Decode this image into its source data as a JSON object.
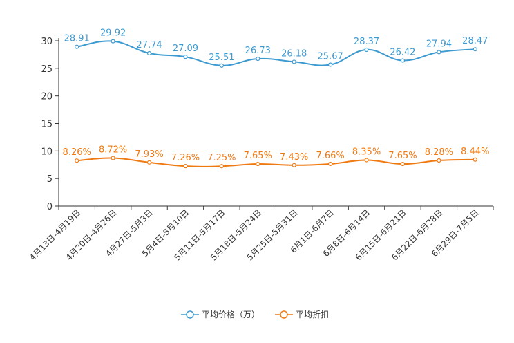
{
  "chart_data": {
    "type": "line",
    "categories": [
      "4月13日-4月19日",
      "4月20日-4月26日",
      "4月27日-5月3日",
      "5月4日-5月10日",
      "5月11日-5月17日",
      "5月18日-5月24日",
      "5月25日-5月31日",
      "6月1日-6月7日",
      "6月8日-6月14日",
      "6月15日-6月21日",
      "6月22日-6月28日",
      "6月29日-7月5日"
    ],
    "ylim": [
      0,
      30
    ],
    "yticks": [
      0,
      5,
      10,
      15,
      20,
      25,
      30
    ],
    "series": [
      {
        "name": "平均价格（万）",
        "color": "#3d9ad1",
        "values": [
          28.91,
          29.92,
          27.74,
          27.09,
          25.51,
          26.73,
          26.18,
          25.67,
          28.37,
          26.42,
          27.94,
          28.47
        ],
        "labels": [
          "28.91",
          "29.92",
          "27.74",
          "27.09",
          "25.51",
          "26.73",
          "26.18",
          "25.67",
          "28.37",
          "26.42",
          "27.94",
          "28.47"
        ]
      },
      {
        "name": "平均折扣",
        "color": "#f07a12",
        "values": [
          8.26,
          8.72,
          7.93,
          7.26,
          7.25,
          7.65,
          7.43,
          7.66,
          8.35,
          7.65,
          8.28,
          8.44
        ],
        "labels": [
          "8.26%",
          "8.72%",
          "7.93%",
          "7.26%",
          "7.25%",
          "7.65%",
          "7.43%",
          "7.66%",
          "8.35%",
          "7.65%",
          "8.28%",
          "8.44%"
        ]
      }
    ],
    "legend": [
      "平均价格（万）",
      "平均折扣"
    ],
    "legend_position": "bottom-center"
  }
}
